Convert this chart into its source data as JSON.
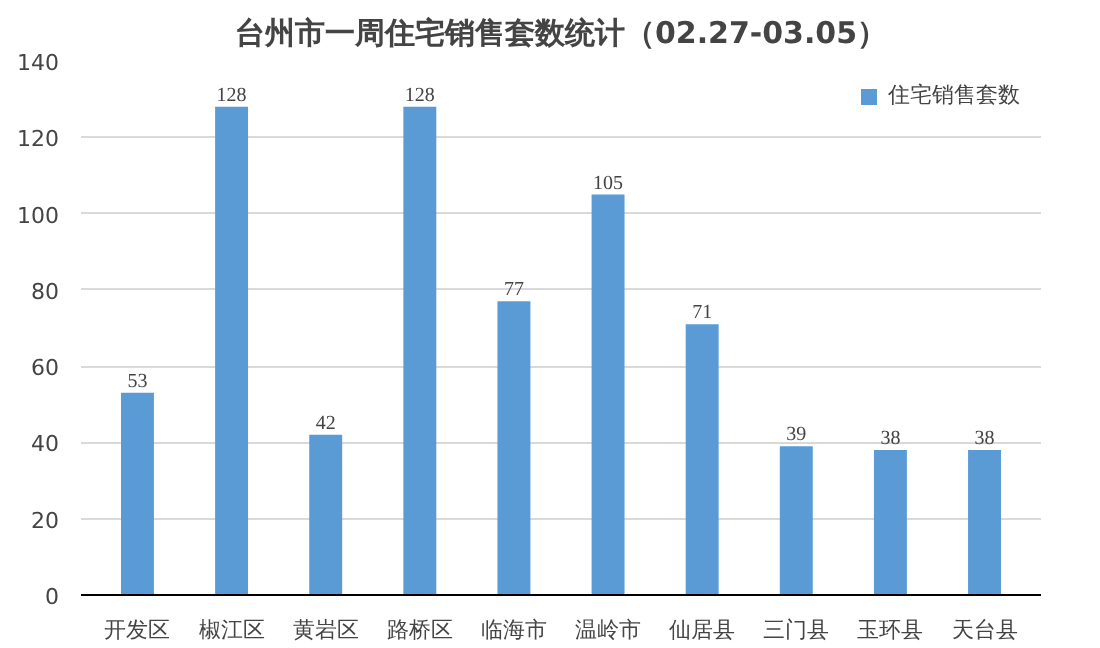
{
  "chart_data": {
    "type": "bar",
    "title": "台州市一周住宅销售套数统计（02.27-03.05）",
    "categories": [
      "开发区",
      "椒江区",
      "黄岩区",
      "路桥区",
      "临海市",
      "温岭市",
      "仙居县",
      "三门县",
      "玉环县",
      "天台县"
    ],
    "series": [
      {
        "name": "住宅销售套数",
        "color": "#5b9bd5",
        "values": [
          53,
          128,
          42,
          128,
          77,
          105,
          71,
          39,
          38,
          38
        ]
      }
    ],
    "ylim": [
      0,
      140
    ],
    "yticks": [
      0,
      20,
      40,
      60,
      80,
      100,
      120,
      140
    ],
    "grid": "y",
    "legend": "top right",
    "data_labels": true
  }
}
